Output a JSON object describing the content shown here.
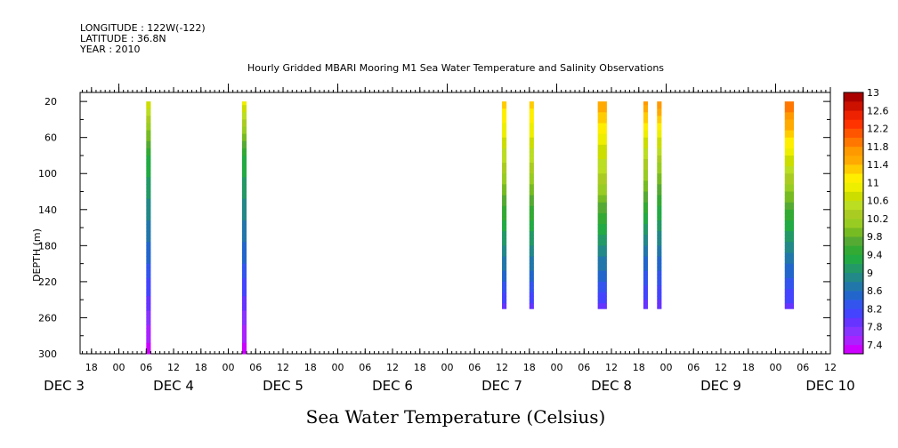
{
  "header": {
    "longitude": "LONGITUDE : 122W(-122)",
    "latitude": "LATITUDE : 36.8N",
    "year": "YEAR : 2010",
    "title": "Hourly Gridded MBARI Mooring M1 Sea Water Temperature and Salinity Observations"
  },
  "chart_data": {
    "type": "heatmap",
    "title": "Hourly Gridded MBARI Mooring M1 Sea Water Temperature and Salinity Observations",
    "xlabel": "",
    "ylabel": "DEPTH (m)",
    "colorbar_label": "Sea Water Temperature (Celsius)",
    "x_units": "hours since 2010-12-03 00:00",
    "xlim": [
      15.5,
      180
    ],
    "ylim": [
      300,
      10
    ],
    "y_ticks": [
      20,
      60,
      100,
      140,
      180,
      220,
      260,
      300
    ],
    "x_hour_ticks": [
      {
        "h": 18,
        "label": "18"
      },
      {
        "h": 24,
        "label": "00"
      },
      {
        "h": 30,
        "label": "06"
      },
      {
        "h": 36,
        "label": "12"
      },
      {
        "h": 42,
        "label": "18"
      },
      {
        "h": 48,
        "label": "00"
      },
      {
        "h": 54,
        "label": "06"
      },
      {
        "h": 60,
        "label": "12"
      },
      {
        "h": 66,
        "label": "18"
      },
      {
        "h": 72,
        "label": "00"
      },
      {
        "h": 78,
        "label": "06"
      },
      {
        "h": 84,
        "label": "12"
      },
      {
        "h": 90,
        "label": "18"
      },
      {
        "h": 96,
        "label": "00"
      },
      {
        "h": 102,
        "label": "06"
      },
      {
        "h": 108,
        "label": "12"
      },
      {
        "h": 114,
        "label": "18"
      },
      {
        "h": 120,
        "label": "00"
      },
      {
        "h": 126,
        "label": "06"
      },
      {
        "h": 132,
        "label": "12"
      },
      {
        "h": 138,
        "label": "18"
      },
      {
        "h": 144,
        "label": "00"
      },
      {
        "h": 150,
        "label": "06"
      },
      {
        "h": 156,
        "label": "12"
      },
      {
        "h": 162,
        "label": "18"
      },
      {
        "h": 168,
        "label": "00"
      },
      {
        "h": 174,
        "label": "06"
      },
      {
        "h": 180,
        "label": "12"
      }
    ],
    "day_labels": [
      {
        "h": 12,
        "label": "DEC  3"
      },
      {
        "h": 36,
        "label": "DEC  4"
      },
      {
        "h": 60,
        "label": "DEC  5"
      },
      {
        "h": 84,
        "label": "DEC  6"
      },
      {
        "h": 108,
        "label": "DEC  7"
      },
      {
        "h": 132,
        "label": "DEC  8"
      },
      {
        "h": 156,
        "label": "DEC  9"
      },
      {
        "h": 180,
        "label": "DEC 10"
      }
    ],
    "colorbar_levels": [
      7.4,
      7.6,
      7.8,
      8.0,
      8.2,
      8.4,
      8.6,
      8.8,
      9.0,
      9.2,
      9.4,
      9.6,
      9.8,
      10.0,
      10.2,
      10.4,
      10.6,
      10.8,
      11.0,
      11.2,
      11.4,
      11.6,
      11.8,
      12.0,
      12.2,
      12.4,
      12.6,
      12.8,
      13.0,
      13.2
    ],
    "colorbar_labels": [
      "7.4",
      "7.8",
      "8.2",
      "8.6",
      "9",
      "9.4",
      "9.8",
      "10.2",
      "10.6",
      "11",
      "11.4",
      "11.8",
      "12.2",
      "12.6",
      "13"
    ],
    "colors": [
      "#cc00ff",
      "#aa22ff",
      "#8833ff",
      "#6633ff",
      "#4444ff",
      "#3355ee",
      "#2266cc",
      "#2277aa",
      "#228888",
      "#229966",
      "#22aa44",
      "#33aa33",
      "#55aa33",
      "#77bb22",
      "#99cc22",
      "#aacc22",
      "#bbdd22",
      "#ccdd00",
      "#eeee00",
      "#ffee00",
      "#ffcc00",
      "#ffaa00",
      "#ff9900",
      "#ff7700",
      "#ff5500",
      "#ff3300",
      "#ee2200",
      "#cc1100",
      "#aa0000"
    ],
    "series": [
      {
        "x0": 30,
        "x1": 31,
        "profile": [
          {
            "d": 20,
            "t": 11.0
          },
          {
            "d": 40,
            "t": 10.5
          },
          {
            "d": 80,
            "t": 9.6
          },
          {
            "d": 140,
            "t": 9.1
          },
          {
            "d": 200,
            "t": 8.6
          },
          {
            "d": 260,
            "t": 7.9
          },
          {
            "d": 300,
            "t": 7.45
          }
        ]
      },
      {
        "x0": 51,
        "x1": 52,
        "profile": [
          {
            "d": 20,
            "t": 11.1
          },
          {
            "d": 40,
            "t": 10.6
          },
          {
            "d": 80,
            "t": 9.6
          },
          {
            "d": 140,
            "t": 9.1
          },
          {
            "d": 200,
            "t": 8.6
          },
          {
            "d": 260,
            "t": 7.9
          },
          {
            "d": 300,
            "t": 7.45
          }
        ]
      },
      {
        "x0": 108,
        "x1": 109,
        "profile": [
          {
            "d": 20,
            "t": 11.5
          },
          {
            "d": 60,
            "t": 11.0
          },
          {
            "d": 100,
            "t": 10.4
          },
          {
            "d": 150,
            "t": 9.6
          },
          {
            "d": 200,
            "t": 8.9
          },
          {
            "d": 250,
            "t": 8.1
          }
        ]
      },
      {
        "x0": 114,
        "x1": 115,
        "profile": [
          {
            "d": 20,
            "t": 11.5
          },
          {
            "d": 60,
            "t": 11.0
          },
          {
            "d": 100,
            "t": 10.4
          },
          {
            "d": 150,
            "t": 9.6
          },
          {
            "d": 200,
            "t": 8.9
          },
          {
            "d": 250,
            "t": 8.1
          }
        ]
      },
      {
        "x0": 129,
        "x1": 131,
        "profile": [
          {
            "d": 20,
            "t": 11.8
          },
          {
            "d": 60,
            "t": 11.1
          },
          {
            "d": 100,
            "t": 10.6
          },
          {
            "d": 150,
            "t": 9.7
          },
          {
            "d": 200,
            "t": 8.9
          },
          {
            "d": 250,
            "t": 8.1
          }
        ]
      },
      {
        "x0": 139,
        "x1": 140,
        "profile": [
          {
            "d": 20,
            "t": 11.9
          },
          {
            "d": 60,
            "t": 11.0
          },
          {
            "d": 100,
            "t": 10.3
          },
          {
            "d": 150,
            "t": 9.5
          },
          {
            "d": 200,
            "t": 8.7
          },
          {
            "d": 250,
            "t": 8.1
          }
        ]
      },
      {
        "x0": 142,
        "x1": 143,
        "profile": [
          {
            "d": 20,
            "t": 12.0
          },
          {
            "d": 60,
            "t": 11.0
          },
          {
            "d": 100,
            "t": 10.2
          },
          {
            "d": 150,
            "t": 9.4
          },
          {
            "d": 200,
            "t": 8.7
          },
          {
            "d": 250,
            "t": 8.1
          }
        ]
      },
      {
        "x0": 170,
        "x1": 172,
        "profile": [
          {
            "d": 20,
            "t": 12.2
          },
          {
            "d": 60,
            "t": 11.4
          },
          {
            "d": 100,
            "t": 10.6
          },
          {
            "d": 150,
            "t": 9.6
          },
          {
            "d": 200,
            "t": 8.8
          },
          {
            "d": 250,
            "t": 8.1
          }
        ]
      }
    ]
  }
}
